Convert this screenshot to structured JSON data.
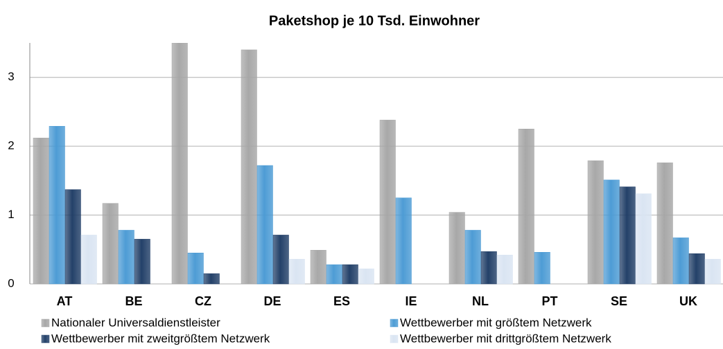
{
  "chart_data": {
    "type": "bar",
    "title": "Paketshop je 10 Tsd. Einwohner",
    "categories": [
      "AT",
      "BE",
      "CZ",
      "DE",
      "ES",
      "IE",
      "NL",
      "PT",
      "SE",
      "UK"
    ],
    "series": [
      {
        "name": "Nationaler Universaldienstleister",
        "color": "#a6a6a6",
        "values": [
          2.12,
          1.17,
          3.5,
          3.4,
          0.49,
          2.38,
          1.04,
          2.25,
          1.79,
          1.76
        ]
      },
      {
        "name": "Wettbewerber mit größtem Netzwerk",
        "color": "#4a9ad4",
        "values": [
          2.29,
          0.78,
          0.45,
          1.72,
          0.28,
          1.25,
          0.78,
          0.46,
          1.51,
          0.67
        ]
      },
      {
        "name": "Wettbewerber mit zweitgrößtem Netzwerk",
        "color": "#1f3d66",
        "values": [
          1.37,
          0.65,
          0.15,
          0.71,
          0.28,
          null,
          0.47,
          null,
          1.41,
          0.44
        ]
      },
      {
        "name": "Wettbewerber mit drittgrößtem Netzwerk",
        "color": "#d9e4f2",
        "values": [
          0.71,
          null,
          null,
          0.36,
          0.22,
          null,
          0.42,
          null,
          1.31,
          0.36
        ]
      }
    ],
    "ylim": [
      0,
      3.5
    ],
    "yticks": [
      0,
      1,
      2,
      3
    ],
    "grid": true
  }
}
